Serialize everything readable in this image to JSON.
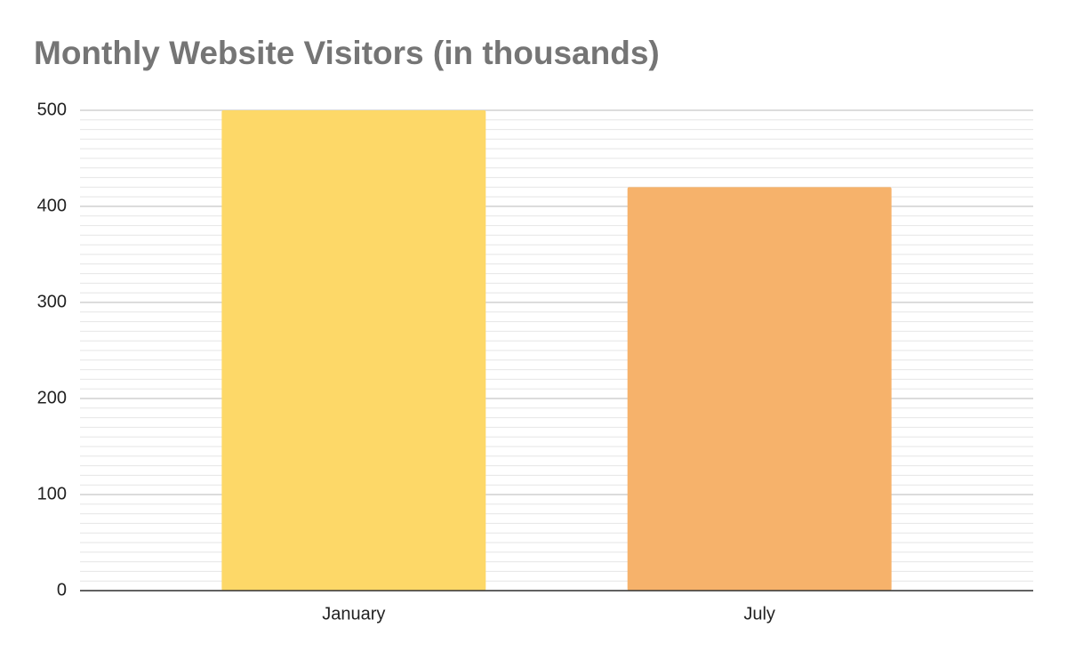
{
  "chart_data": {
    "type": "bar",
    "title": "Monthly Website Visitors (in thousands)",
    "categories": [
      "January",
      "July"
    ],
    "values": [
      500,
      420
    ],
    "colors": [
      "#fdd868",
      "#f6b26b"
    ],
    "ylim": [
      0,
      500
    ],
    "yticks": [
      0,
      100,
      200,
      300,
      400,
      500
    ],
    "grid": true,
    "minor_grid": true
  }
}
